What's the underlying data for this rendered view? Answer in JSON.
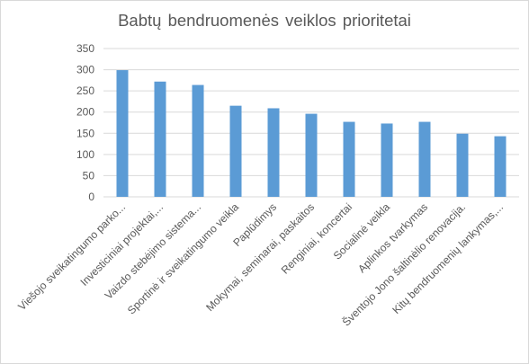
{
  "chart_data": {
    "type": "bar",
    "title": "Babtų bendruomenės veiklos prioritetai",
    "categories": [
      "Viešojo sveikatingumo parko...",
      "Investiciniai projektai,...",
      "Vaizdo stebėjimo sistema...",
      "Sportinė ir sveikatingumo veikla",
      "Paplūdimys",
      "Mokymai, seminarai, paskaitos",
      "Renginiai, koncertai",
      "Socialinė veikla",
      "Aplinkos tvarkymas",
      "Šventojo Jono šaltinėlio renovacija.",
      "Kitų bendruomenių lankymas,..."
    ],
    "values": [
      299,
      272,
      264,
      215,
      209,
      196,
      177,
      173,
      177,
      149,
      143
    ],
    "ylim": [
      0,
      350
    ],
    "yticks": [
      0,
      50,
      100,
      150,
      200,
      250,
      300,
      350
    ],
    "xlabel": "",
    "ylabel": "",
    "grid": true,
    "legend": "none",
    "bar_color": "#5b9bd5",
    "grid_color": "#d9d9d9",
    "text_color": "#595959"
  }
}
